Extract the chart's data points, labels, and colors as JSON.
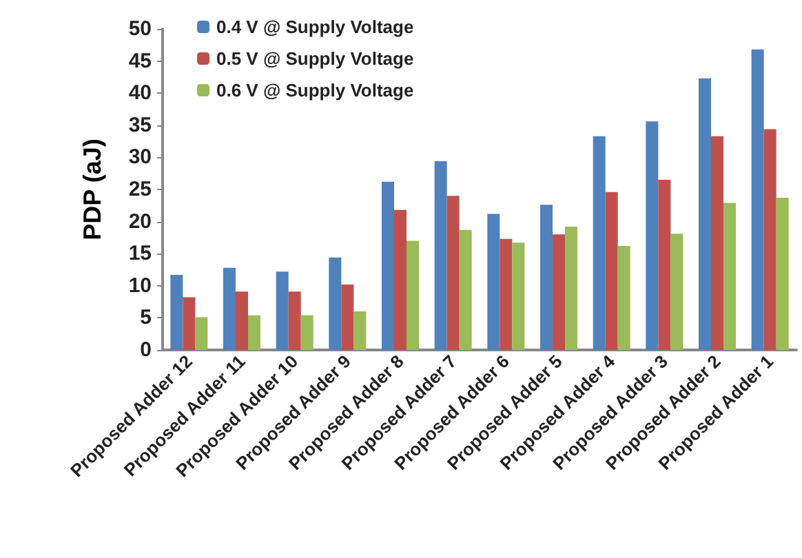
{
  "chart_data": {
    "type": "bar",
    "ylabel": "PDP (aJ)",
    "categories": [
      "Proposed Adder 12",
      "Proposed Adder 11",
      "Proposed Adder 10",
      "Proposed Adder 9",
      "Proposed Adder 8",
      "Proposed Adder 7",
      "Proposed Adder 6",
      "Proposed Adder 5",
      "Proposed Adder 4",
      "Proposed Adder 3",
      "Proposed Adder 2",
      "Proposed Adder 1"
    ],
    "series": [
      {
        "name": "0.4 V @ Supply Voltage",
        "color": "#4f81bd",
        "values": [
          11.7,
          12.8,
          12.2,
          14.4,
          26.2,
          29.4,
          21.2,
          22.6,
          33.3,
          35.6,
          42.3,
          46.8
        ]
      },
      {
        "name": "0.5 V @ Supply Voltage",
        "color": "#c0504d",
        "values": [
          8.2,
          9.1,
          9.1,
          10.2,
          21.8,
          24.0,
          17.3,
          18.0,
          24.6,
          26.5,
          33.3,
          34.4
        ]
      },
      {
        "name": "0.6 V @ Supply Voltage",
        "color": "#9bbb59",
        "values": [
          5.1,
          5.4,
          5.4,
          6.0,
          17.0,
          18.7,
          16.7,
          19.2,
          16.2,
          18.1,
          22.9,
          23.7
        ]
      }
    ],
    "ylim": [
      0,
      50
    ],
    "yticks": [
      0,
      5,
      10,
      15,
      20,
      25,
      30,
      35,
      40,
      45,
      50
    ],
    "grid": false,
    "legend": "top left"
  }
}
